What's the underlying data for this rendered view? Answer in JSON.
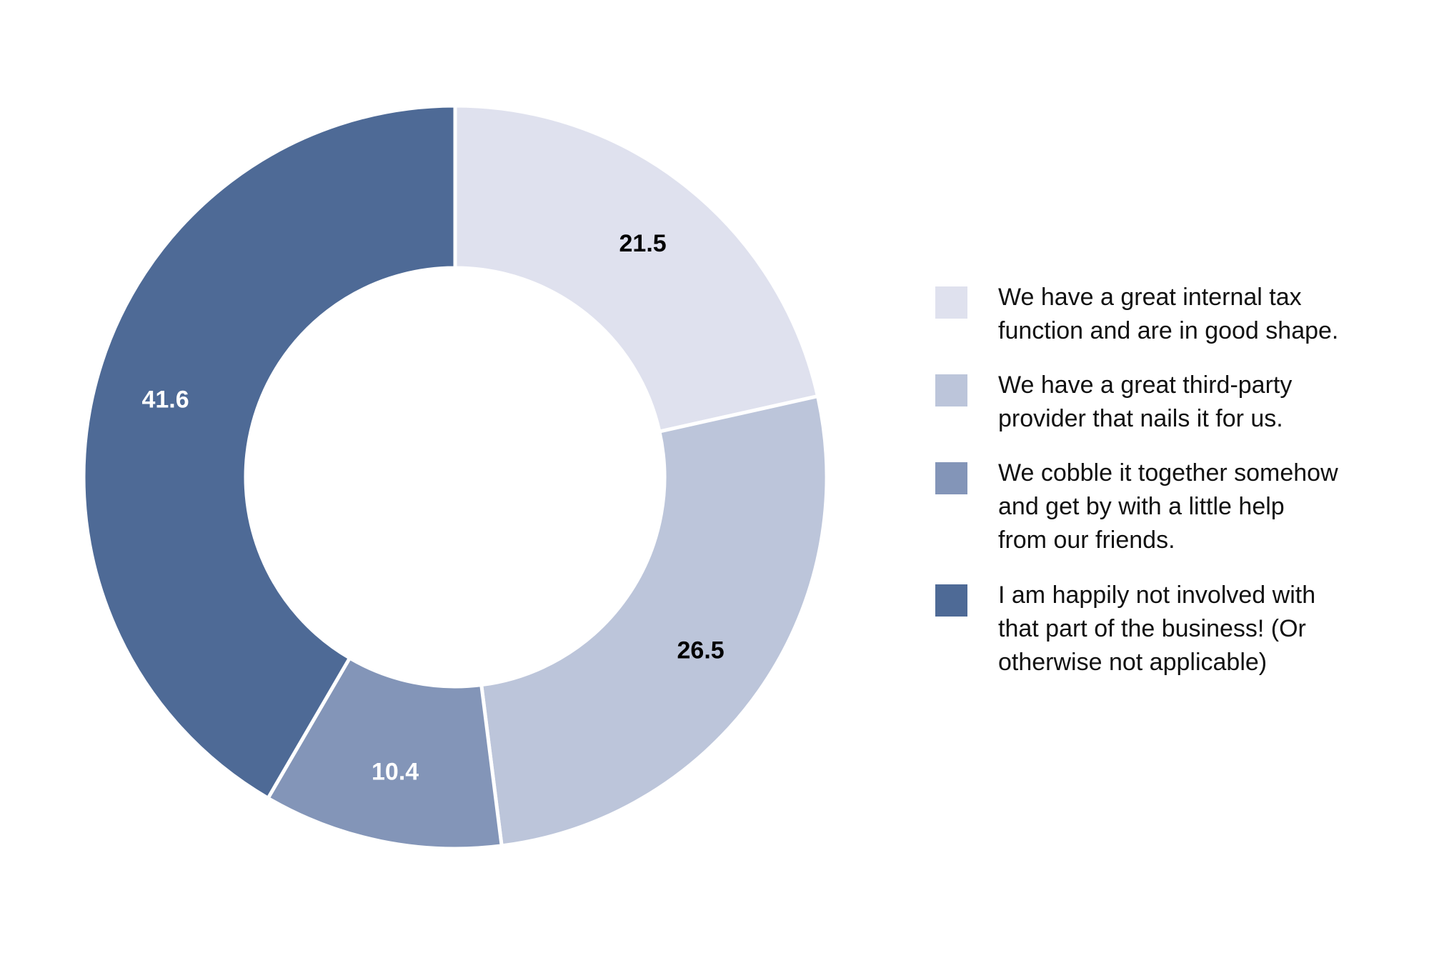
{
  "chart_data": {
    "type": "pie",
    "variant": "donut",
    "title": "",
    "legend_position": "right",
    "start": "top",
    "direction": "clockwise",
    "slices": [
      {
        "label": "We have a great internal tax\nfunction and are in good shape.",
        "value": 21.5,
        "value_label": "21.5",
        "color": "#dfe1ee",
        "label_color": "#000000"
      },
      {
        "label": "We have a great third-party\nprovider that nails it for us.",
        "value": 26.5,
        "value_label": "26.5",
        "color": "#bcc5da",
        "label_color": "#000000"
      },
      {
        "label": "We cobble it together somehow\nand get by with a little help\nfrom our friends.",
        "value": 10.4,
        "value_label": "10.4",
        "color": "#8395b8",
        "label_color": "#ffffff"
      },
      {
        "label": "I am happily not involved with\nthat part of the business! (Or\notherwise not applicable)",
        "value": 41.6,
        "value_label": "41.6",
        "color": "#4e6a96",
        "label_color": "#ffffff"
      }
    ]
  }
}
